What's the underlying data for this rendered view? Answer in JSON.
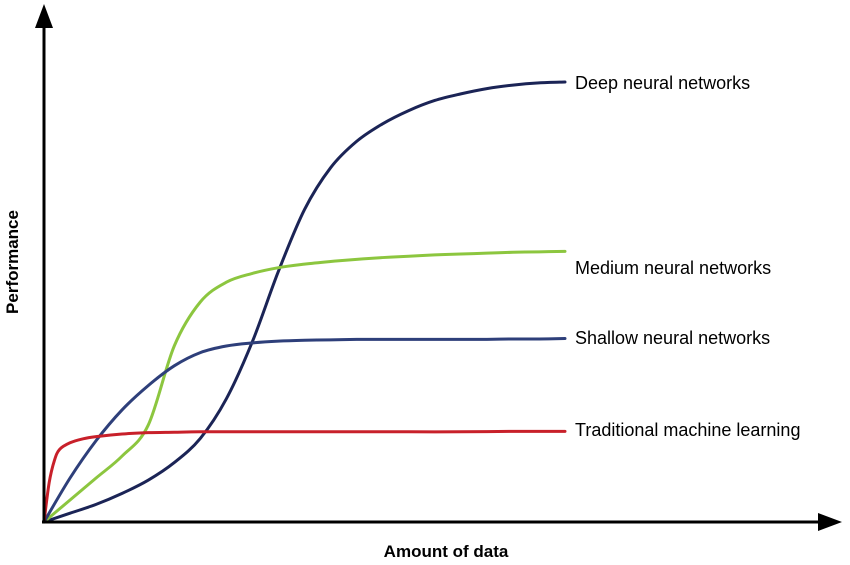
{
  "chart_data": {
    "type": "line",
    "xlabel": "Amount of data",
    "ylabel": "Performance",
    "xlim": [
      0,
      100
    ],
    "ylim": [
      0,
      100
    ],
    "grid": false,
    "legend": "inline labels at right end of each line",
    "series": [
      {
        "name": "Deep neural networks",
        "color": "#1b2456",
        "x": [
          0,
          5,
          10,
          15,
          20,
          25,
          30,
          35,
          40,
          45,
          50,
          55,
          60,
          65,
          70,
          75,
          80,
          85,
          90,
          95,
          100
        ],
        "y": [
          0,
          2,
          4,
          6.5,
          9.5,
          13.5,
          19,
          28,
          41,
          57,
          71,
          80.5,
          86.5,
          90.5,
          93.5,
          95.8,
          97.3,
          98.5,
          99.3,
          99.8,
          100
        ]
      },
      {
        "name": "Medium neural networks",
        "color": "#8cc63f",
        "x": [
          0,
          5,
          10,
          15,
          20,
          25,
          30,
          35,
          40,
          45,
          50,
          55,
          60,
          65,
          70,
          75,
          80,
          85,
          90,
          95,
          100
        ],
        "y": [
          0,
          5,
          10,
          15,
          22,
          40,
          50,
          54.5,
          56.5,
          57.8,
          58.6,
          59.2,
          59.7,
          60.1,
          60.4,
          60.7,
          60.9,
          61.1,
          61.3,
          61.4,
          61.5
        ]
      },
      {
        "name": "Shallow neural networks",
        "color": "#2e3f7a",
        "x": [
          0,
          5,
          10,
          15,
          20,
          25,
          30,
          35,
          40,
          45,
          50,
          55,
          60,
          65,
          70,
          75,
          80,
          85,
          90,
          95,
          100
        ],
        "y": [
          0,
          10,
          18.5,
          25.5,
          31,
          35.5,
          38.5,
          40,
          40.7,
          41.1,
          41.3,
          41.4,
          41.5,
          41.5,
          41.5,
          41.5,
          41.5,
          41.5,
          41.6,
          41.6,
          41.7
        ]
      },
      {
        "name": "Traditional machine learning",
        "color": "#c8202a",
        "x": [
          0,
          1,
          2,
          3,
          5,
          7.5,
          10,
          15,
          20,
          25,
          30,
          40,
          50,
          60,
          70,
          80,
          90,
          100
        ],
        "y": [
          0,
          9,
          14,
          16.5,
          18,
          18.9,
          19.4,
          20,
          20.3,
          20.4,
          20.5,
          20.5,
          20.5,
          20.5,
          20.5,
          20.5,
          20.6,
          20.6
        ]
      }
    ]
  }
}
